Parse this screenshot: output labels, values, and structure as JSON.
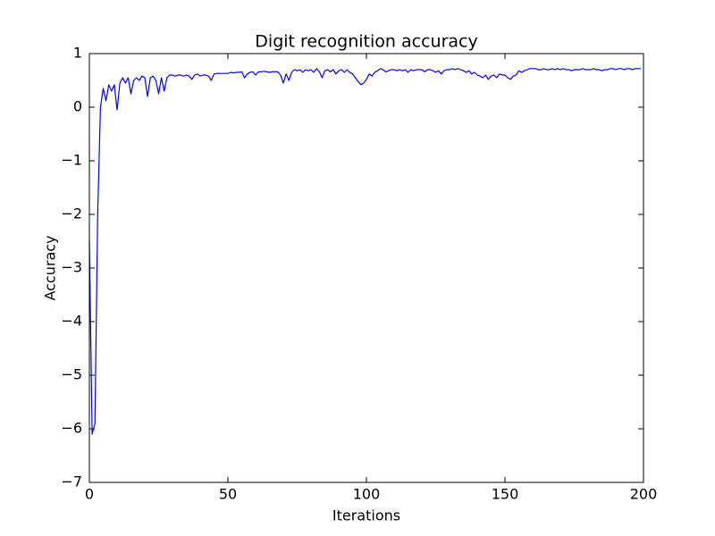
{
  "chart_data": {
    "type": "line",
    "title": "Digit recognition accuracy",
    "x_label": "Iterations",
    "y_label": "Accuracy",
    "x": [
      0,
      1,
      2,
      3,
      4,
      5,
      6,
      7,
      8,
      9,
      10,
      11,
      12,
      13,
      14,
      15,
      16,
      17,
      18,
      19,
      20,
      21,
      22,
      23,
      24,
      25,
      26,
      27,
      28,
      29,
      30,
      31,
      32,
      33,
      34,
      35,
      36,
      37,
      38,
      39,
      40,
      41,
      42,
      43,
      44,
      45,
      46,
      47,
      48,
      49,
      50,
      51,
      52,
      53,
      54,
      55,
      56,
      57,
      58,
      59,
      60,
      61,
      62,
      63,
      64,
      65,
      66,
      67,
      68,
      69,
      70,
      71,
      72,
      73,
      74,
      75,
      76,
      77,
      78,
      79,
      80,
      81,
      82,
      83,
      84,
      85,
      86,
      87,
      88,
      89,
      90,
      91,
      92,
      93,
      94,
      95,
      96,
      97,
      98,
      99,
      100,
      101,
      102,
      103,
      104,
      105,
      106,
      107,
      108,
      109,
      110,
      111,
      112,
      113,
      114,
      115,
      116,
      117,
      118,
      119,
      120,
      121,
      122,
      123,
      124,
      125,
      126,
      127,
      128,
      129,
      130,
      131,
      132,
      133,
      134,
      135,
      136,
      137,
      138,
      139,
      140,
      141,
      142,
      143,
      144,
      145,
      146,
      147,
      148,
      149,
      150,
      151,
      152,
      153,
      154,
      155,
      156,
      157,
      158,
      159,
      160,
      161,
      162,
      163,
      164,
      165,
      166,
      167,
      168,
      169,
      170,
      171,
      172,
      173,
      174,
      175,
      176,
      177,
      178,
      179,
      180,
      181,
      182,
      183,
      184,
      185,
      186,
      187,
      188,
      189,
      190,
      191,
      192,
      193,
      194,
      195,
      196,
      197,
      198,
      199
    ],
    "series": [
      {
        "color": "#0000ff",
        "values": [
          -2.5,
          -6.1,
          -5.9,
          -2.0,
          0.0,
          0.35,
          0.12,
          0.42,
          0.3,
          0.42,
          -0.05,
          0.45,
          0.55,
          0.45,
          0.55,
          0.25,
          0.5,
          0.55,
          0.5,
          0.58,
          0.55,
          0.2,
          0.55,
          0.58,
          0.5,
          0.25,
          0.55,
          0.3,
          0.55,
          0.6,
          0.6,
          0.58,
          0.6,
          0.6,
          0.58,
          0.6,
          0.58,
          0.52,
          0.6,
          0.62,
          0.58,
          0.6,
          0.6,
          0.58,
          0.5,
          0.62,
          0.63,
          0.63,
          0.63,
          0.63,
          0.63,
          0.65,
          0.64,
          0.65,
          0.65,
          0.66,
          0.55,
          0.62,
          0.65,
          0.66,
          0.6,
          0.66,
          0.66,
          0.67,
          0.66,
          0.65,
          0.66,
          0.66,
          0.66,
          0.6,
          0.45,
          0.62,
          0.5,
          0.65,
          0.7,
          0.68,
          0.7,
          0.65,
          0.7,
          0.68,
          0.7,
          0.65,
          0.72,
          0.66,
          0.55,
          0.68,
          0.7,
          0.66,
          0.7,
          0.62,
          0.68,
          0.7,
          0.65,
          0.7,
          0.65,
          0.62,
          0.55,
          0.48,
          0.42,
          0.45,
          0.52,
          0.62,
          0.58,
          0.65,
          0.68,
          0.72,
          0.7,
          0.66,
          0.68,
          0.7,
          0.7,
          0.68,
          0.7,
          0.68,
          0.7,
          0.65,
          0.7,
          0.68,
          0.7,
          0.7,
          0.7,
          0.66,
          0.7,
          0.7,
          0.68,
          0.65,
          0.68,
          0.62,
          0.68,
          0.7,
          0.7,
          0.72,
          0.7,
          0.72,
          0.7,
          0.68,
          0.65,
          0.68,
          0.62,
          0.65,
          0.6,
          0.58,
          0.55,
          0.6,
          0.52,
          0.58,
          0.6,
          0.55,
          0.62,
          0.6,
          0.6,
          0.55,
          0.52,
          0.58,
          0.6,
          0.68,
          0.65,
          0.68,
          0.7,
          0.72,
          0.72,
          0.72,
          0.7,
          0.7,
          0.72,
          0.7,
          0.7,
          0.72,
          0.7,
          0.72,
          0.7,
          0.72,
          0.7,
          0.7,
          0.68,
          0.7,
          0.7,
          0.7,
          0.72,
          0.7,
          0.7,
          0.7,
          0.72,
          0.7,
          0.7,
          0.68,
          0.7,
          0.7,
          0.72,
          0.72,
          0.7,
          0.72,
          0.72,
          0.7,
          0.72,
          0.72,
          0.7,
          0.72,
          0.72,
          0.72
        ]
      }
    ],
    "xlim": [
      0,
      200
    ],
    "xticks": [
      0,
      50,
      100,
      150,
      200
    ],
    "ylim": [
      -7,
      1
    ],
    "yticks": [
      {
        "value": -7,
        "label": "−7"
      },
      {
        "value": -6,
        "label": "−6"
      },
      {
        "value": -5,
        "label": "−5"
      },
      {
        "value": -4,
        "label": "−4"
      },
      {
        "value": -3,
        "label": "−3"
      },
      {
        "value": -2,
        "label": "−2"
      },
      {
        "value": -1,
        "label": "−1"
      },
      0,
      1
    ],
    "grid": false
  }
}
